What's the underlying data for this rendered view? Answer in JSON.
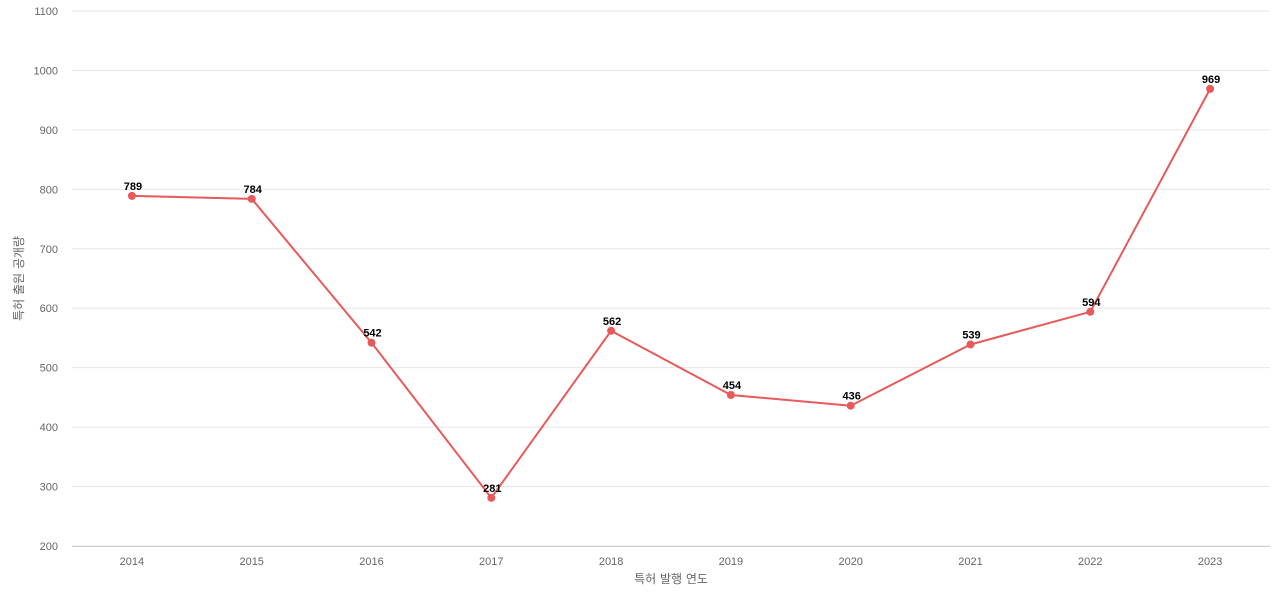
{
  "chart_data": {
    "type": "line",
    "title": "",
    "xlabel": "특허 발행 연도",
    "ylabel": "특허 출원 공개량",
    "categories": [
      "2014",
      "2015",
      "2016",
      "2017",
      "2018",
      "2019",
      "2020",
      "2021",
      "2022",
      "2023"
    ],
    "series": [
      {
        "values": [
          789,
          784,
          542,
          281,
          562,
          454,
          436,
          539,
          594,
          969
        ],
        "color": "#e85a5a"
      }
    ],
    "ylim": [
      200,
      1100
    ],
    "yticks": [
      200,
      300,
      400,
      500,
      600,
      700,
      800,
      900,
      1000,
      1100
    ],
    "grid": true,
    "legend": "none",
    "data_labels": true
  }
}
